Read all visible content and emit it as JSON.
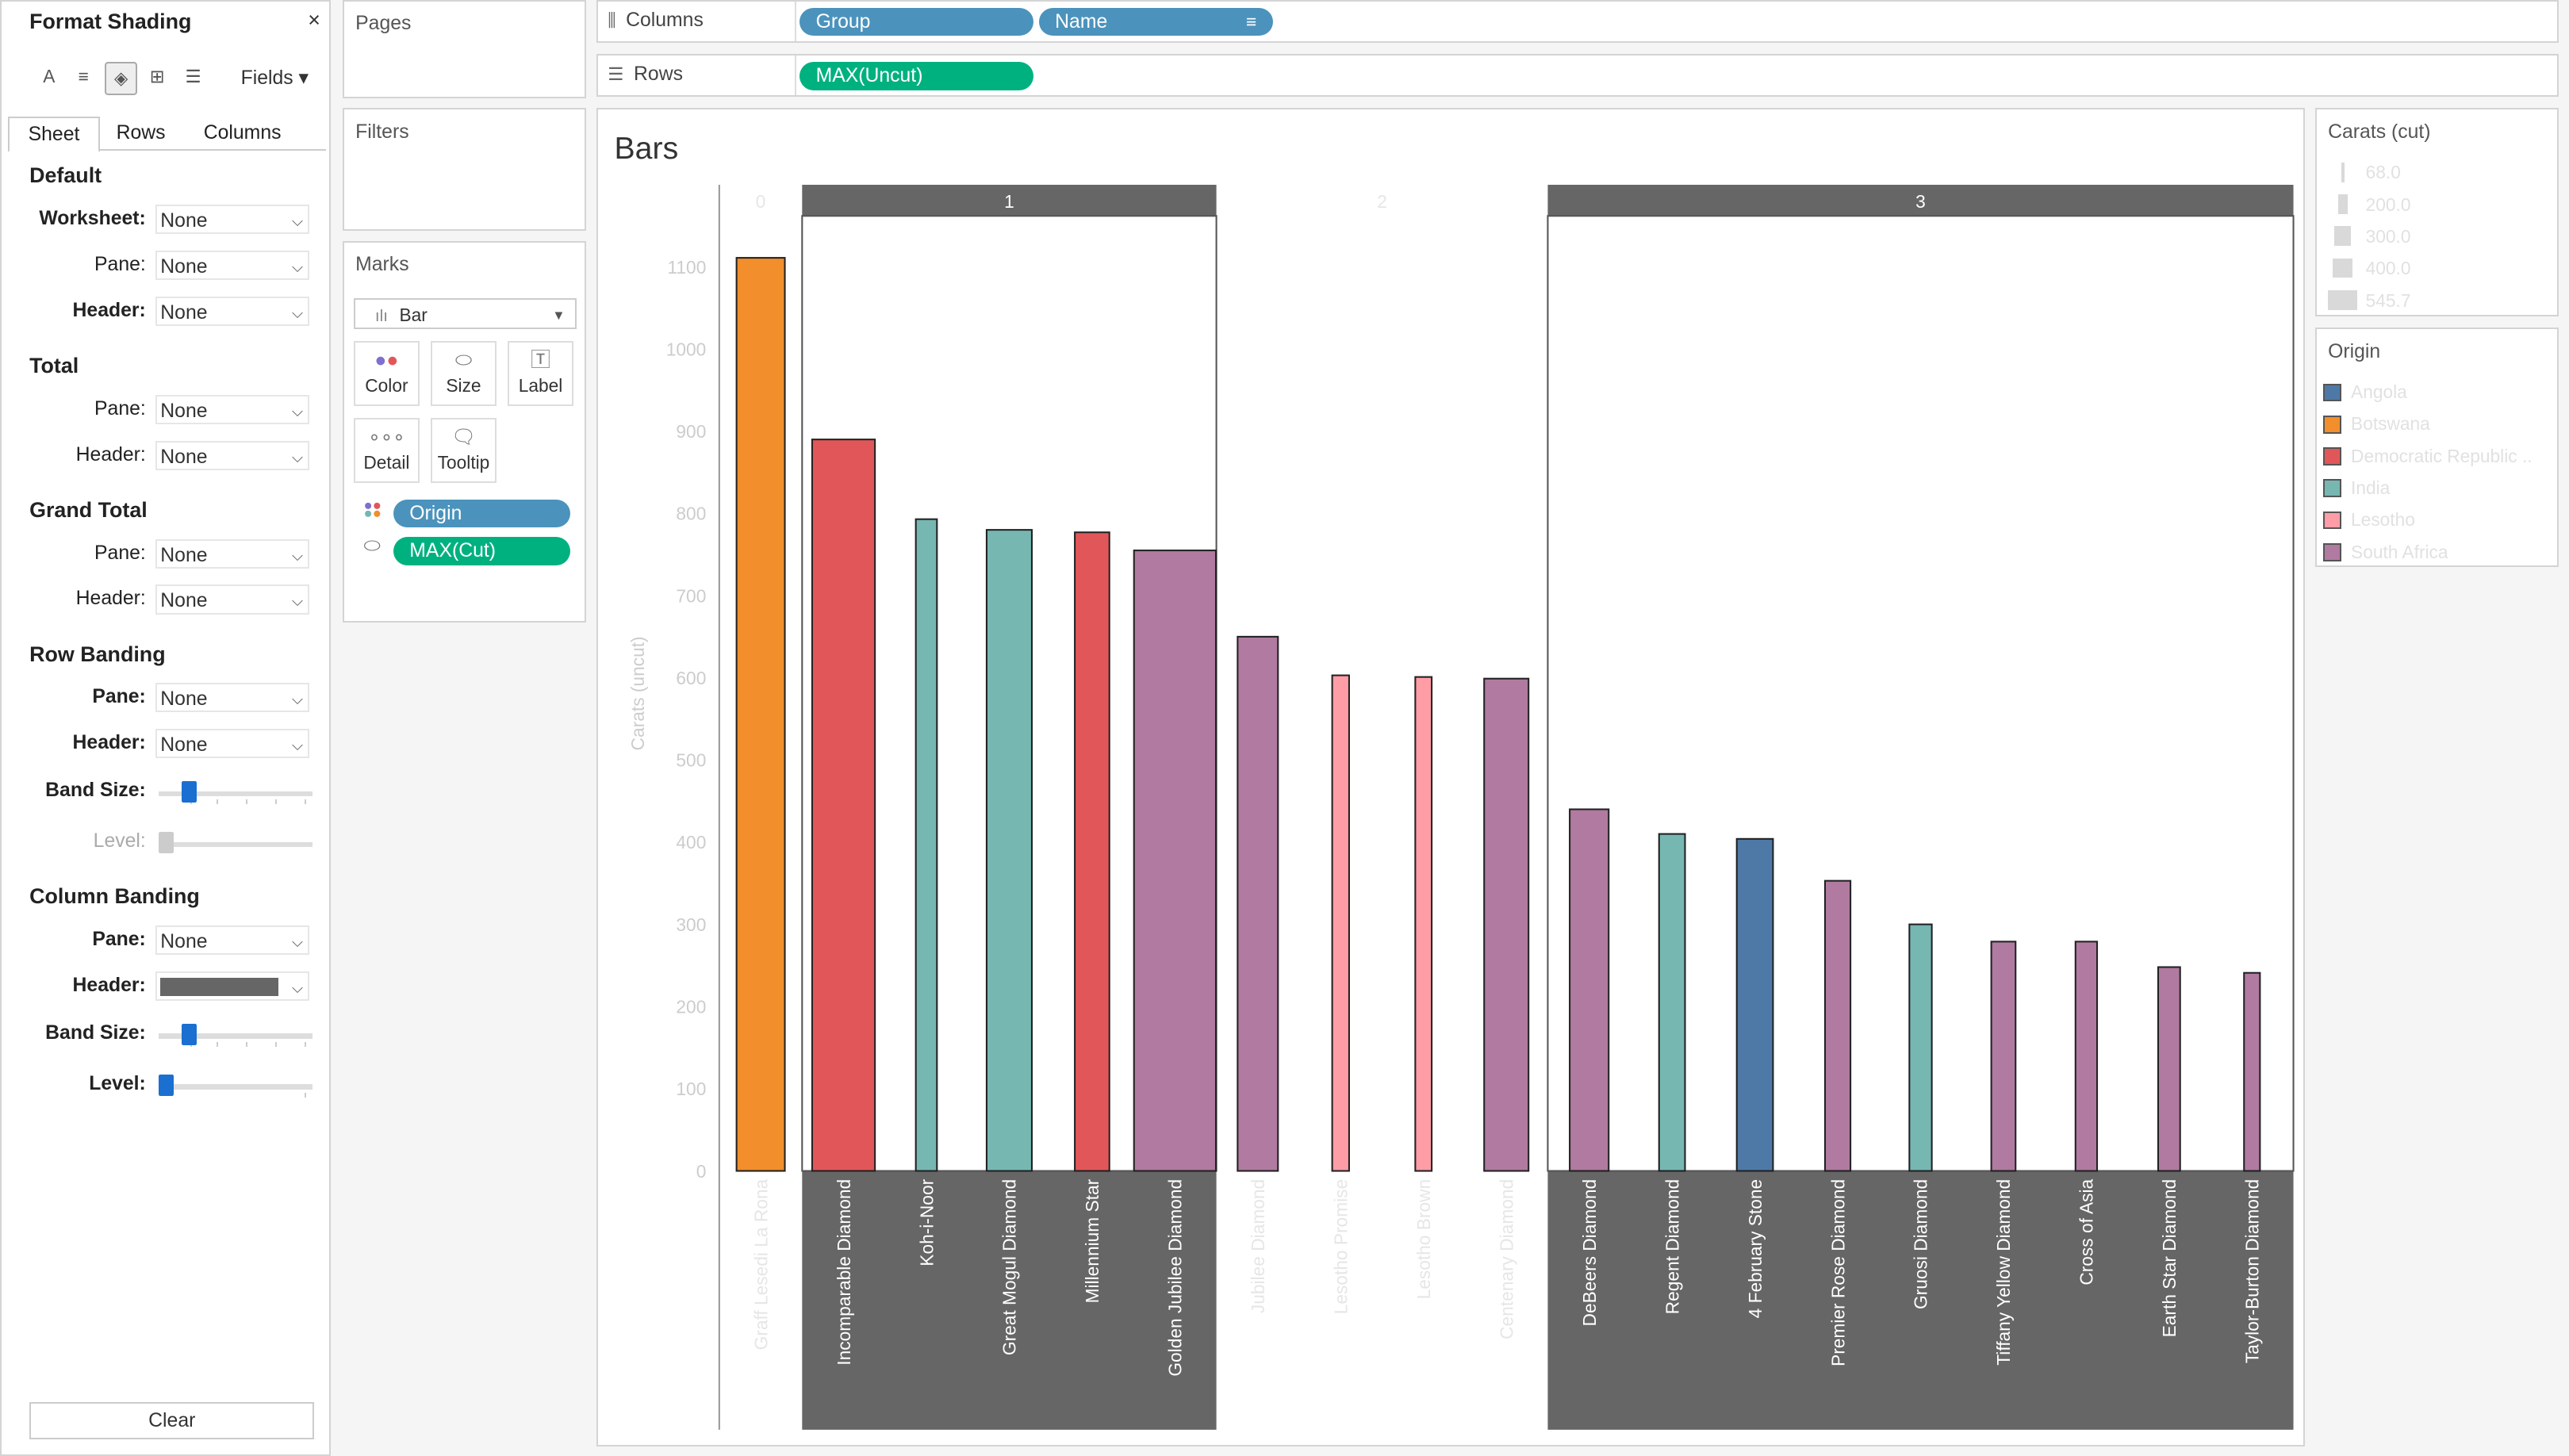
{
  "format_pane": {
    "title": "Format Shading",
    "close": "×",
    "fields": "Fields ▾",
    "tabs": [
      "Sheet",
      "Rows",
      "Columns"
    ],
    "sections": {
      "default": "Default",
      "total": "Total",
      "grand_total": "Grand Total",
      "row_banding": "Row Banding",
      "column_banding": "Column Banding"
    },
    "labels": {
      "worksheet": "Worksheet:",
      "pane": "Pane:",
      "header": "Header:",
      "band_size": "Band Size:",
      "level": "Level:"
    },
    "none": "None",
    "header_color": "#666666",
    "clear": "Clear"
  },
  "cards": {
    "pages": "Pages",
    "filters": "Filters",
    "marks": "Marks",
    "mark_type": "Bar",
    "buttons": [
      "Color",
      "Size",
      "Label",
      "Detail",
      "Tooltip"
    ],
    "pills": [
      "Origin",
      "MAX(Cut)"
    ]
  },
  "shelves": {
    "columns_label": "Columns",
    "rows_label": "Rows",
    "columns": [
      "Group",
      "Name"
    ],
    "rows": [
      "MAX(Uncut)"
    ]
  },
  "view": {
    "title": "Bars"
  },
  "legends": {
    "carats_title": "Carats (cut)",
    "carats_items": [
      "68.0",
      "200.0",
      "300.0",
      "400.0",
      "545.7"
    ],
    "origin_title": "Origin",
    "origin_items": [
      {
        "label": "Angola",
        "color": "#4e79a7"
      },
      {
        "label": "Botswana",
        "color": "#f28e2b"
      },
      {
        "label": "Democratic Republic ..",
        "color": "#e15759"
      },
      {
        "label": "India",
        "color": "#76b7b2"
      },
      {
        "label": "Lesotho",
        "color": "#ff9da7"
      },
      {
        "label": "South Africa",
        "color": "#b07aa1"
      }
    ]
  },
  "chart_data": {
    "type": "bar",
    "title": "Bars",
    "ylabel": "Carats (uncut)",
    "ylim": [
      0,
      1150
    ],
    "yticks": [
      0,
      100,
      200,
      300,
      400,
      500,
      600,
      700,
      800,
      900,
      1000,
      1100
    ],
    "groups": [
      "0",
      "1",
      "2",
      "3"
    ],
    "highlight_color": "#666666",
    "bars": [
      {
        "name": "Graff Lesedi La Rona",
        "group": "0",
        "value": 1111,
        "cut": 302.4,
        "origin": "Botswana",
        "color": "#f28e2b"
      },
      {
        "name": "Incomparable Diamond",
        "group": "1",
        "value": 890,
        "cut": 407.5,
        "origin": "Democratic Republic ..",
        "color": "#e15759"
      },
      {
        "name": "Koh-i-Noor",
        "group": "1",
        "value": 793,
        "cut": 105.6,
        "origin": "India",
        "color": "#76b7b2"
      },
      {
        "name": "Great Mogul Diamond",
        "group": "1",
        "value": 780,
        "cut": 280,
        "origin": "India",
        "color": "#76b7b2"
      },
      {
        "name": "Millennium Star",
        "group": "1",
        "value": 777,
        "cut": 203,
        "origin": "Democratic Republic ..",
        "color": "#e15759"
      },
      {
        "name": "Golden Jubilee Diamond",
        "group": "1",
        "value": 755,
        "cut": 545.7,
        "origin": "South Africa",
        "color": "#b07aa1"
      },
      {
        "name": "Jubilee Diamond",
        "group": "2",
        "value": 650,
        "cut": 245,
        "origin": "South Africa",
        "color": "#b07aa1"
      },
      {
        "name": "Lesotho Promise",
        "group": "2",
        "value": 603,
        "cut": 75,
        "origin": "Lesotho",
        "color": "#ff9da7"
      },
      {
        "name": "Lesotho Brown",
        "group": "2",
        "value": 601,
        "cut": 71.7,
        "origin": "Lesotho",
        "color": "#ff9da7"
      },
      {
        "name": "Centenary Diamond",
        "group": "2",
        "value": 599,
        "cut": 273.9,
        "origin": "South Africa",
        "color": "#b07aa1"
      },
      {
        "name": "DeBeers Diamond",
        "group": "3",
        "value": 440,
        "cut": 234.6,
        "origin": "South Africa",
        "color": "#b07aa1"
      },
      {
        "name": "Regent Diamond",
        "group": "3",
        "value": 410,
        "cut": 140.6,
        "origin": "India",
        "color": "#76b7b2"
      },
      {
        "name": "4 February Stone",
        "group": "3",
        "value": 404,
        "cut": 215,
        "origin": "Angola",
        "color": "#4e79a7"
      },
      {
        "name": "Premier Rose Diamond",
        "group": "3",
        "value": 353,
        "cut": 137,
        "origin": "South Africa",
        "color": "#b07aa1"
      },
      {
        "name": "Gruosi Diamond",
        "group": "3",
        "value": 300,
        "cut": 115,
        "origin": "India",
        "color": "#76b7b2"
      },
      {
        "name": "Tiffany Yellow Diamond",
        "group": "3",
        "value": 279,
        "cut": 128.5,
        "origin": "South Africa",
        "color": "#b07aa1"
      },
      {
        "name": "Cross of Asia",
        "group": "3",
        "value": 279,
        "cut": 109,
        "origin": "South Africa",
        "color": "#b07aa1"
      },
      {
        "name": "Earth Star Diamond",
        "group": "3",
        "value": 248,
        "cut": 111.6,
        "origin": "South Africa",
        "color": "#b07aa1"
      },
      {
        "name": "Taylor-Burton Diamond",
        "group": "3",
        "value": 241,
        "cut": 68,
        "origin": "South Africa",
        "color": "#b07aa1"
      }
    ]
  }
}
